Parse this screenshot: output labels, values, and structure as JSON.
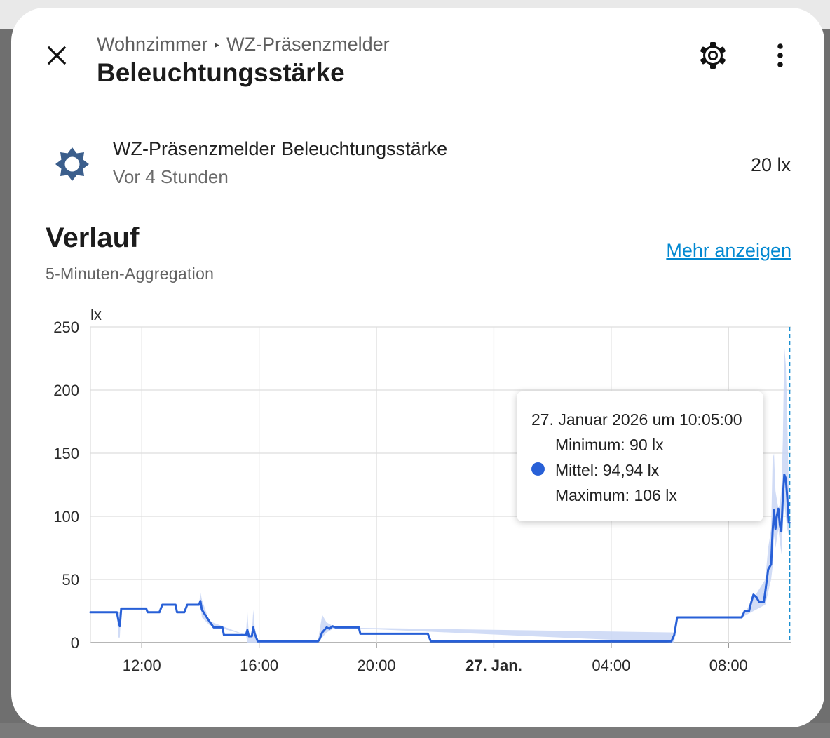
{
  "header": {
    "breadcrumb_area": "Wohnzimmer",
    "breadcrumb_separator": "▸",
    "breadcrumb_device": "WZ-Präsenzmelder",
    "title": "Beleuchtungsstärke",
    "icons": {
      "close": "close-icon",
      "settings": "gear-icon",
      "more": "more-vertical-icon"
    }
  },
  "entity": {
    "icon": "brightness-icon",
    "name": "WZ-Präsenzmelder Beleuchtungsstärke",
    "last_changed": "Vor 4 Stunden",
    "state": "20 lx"
  },
  "history": {
    "title": "Verlauf",
    "subtitle": "5-Minuten-Aggregation",
    "more_link": "Mehr anzeigen"
  },
  "tooltip": {
    "date": "27. Januar 2026 um 10:05:00",
    "min": "Minimum: 90 lx",
    "mean": "Mittel: 94,94 lx",
    "max": "Maximum: 106 lx"
  },
  "colors": {
    "line": "#2860d7",
    "band": "#c9d6f4",
    "link": "#0288d1",
    "icon": "#3b5e8c",
    "cursor": "#1a8fd0"
  },
  "chart_data": {
    "type": "line",
    "ylabel": "lx",
    "ylim": [
      0,
      250
    ],
    "yticks": [
      0,
      50,
      100,
      150,
      200,
      250
    ],
    "x_unit": "hours since 26. Jan. 00:00",
    "xlim": [
      10.25,
      34.12
    ],
    "xticks": [
      {
        "value": 12,
        "label": "12:00",
        "bold": false
      },
      {
        "value": 16,
        "label": "16:00",
        "bold": false
      },
      {
        "value": 20,
        "label": "20:00",
        "bold": false
      },
      {
        "value": 24,
        "label": "27. Jan.",
        "bold": true
      },
      {
        "value": 28,
        "label": "04:00",
        "bold": false
      },
      {
        "value": 32,
        "label": "08:00",
        "bold": false
      }
    ],
    "cursor_x": 34.08,
    "series": [
      {
        "name": "Mittel",
        "points": [
          [
            10.25,
            24
          ],
          [
            11.15,
            24
          ],
          [
            11.2,
            18
          ],
          [
            11.25,
            13
          ],
          [
            11.3,
            27
          ],
          [
            12.15,
            27
          ],
          [
            12.2,
            24
          ],
          [
            12.6,
            24
          ],
          [
            12.7,
            30
          ],
          [
            13.15,
            30
          ],
          [
            13.2,
            24
          ],
          [
            13.45,
            24
          ],
          [
            13.55,
            30
          ],
          [
            13.95,
            30
          ],
          [
            14.0,
            33
          ],
          [
            14.05,
            26
          ],
          [
            14.3,
            17
          ],
          [
            14.45,
            12
          ],
          [
            14.75,
            12
          ],
          [
            14.8,
            6
          ],
          [
            15.55,
            6
          ],
          [
            15.6,
            10
          ],
          [
            15.65,
            5
          ],
          [
            15.75,
            5
          ],
          [
            15.8,
            12
          ],
          [
            15.85,
            7
          ],
          [
            15.95,
            1
          ],
          [
            18.0,
            1
          ],
          [
            18.05,
            2
          ],
          [
            18.15,
            8
          ],
          [
            18.3,
            12
          ],
          [
            18.4,
            11
          ],
          [
            18.5,
            13
          ],
          [
            18.6,
            12
          ],
          [
            19.4,
            12
          ],
          [
            19.45,
            7
          ],
          [
            21.75,
            7
          ],
          [
            21.85,
            1
          ],
          [
            30.05,
            1
          ],
          [
            30.15,
            6
          ],
          [
            30.25,
            20
          ],
          [
            32.45,
            20
          ],
          [
            32.55,
            25
          ],
          [
            32.7,
            25
          ],
          [
            32.75,
            30
          ],
          [
            32.85,
            38
          ],
          [
            32.95,
            36
          ],
          [
            33.05,
            32
          ],
          [
            33.2,
            32
          ],
          [
            33.25,
            40
          ],
          [
            33.35,
            58
          ],
          [
            33.45,
            62
          ],
          [
            33.5,
            88
          ],
          [
            33.55,
            105
          ],
          [
            33.6,
            90
          ],
          [
            33.65,
            101
          ],
          [
            33.7,
            106
          ],
          [
            33.75,
            93
          ],
          [
            33.8,
            88
          ],
          [
            33.85,
            115
          ],
          [
            33.9,
            133
          ],
          [
            33.95,
            130
          ],
          [
            34.0,
            115
          ],
          [
            34.05,
            95
          ],
          [
            34.08,
            94.94
          ]
        ],
        "band_points": [
          [
            10.25,
            24,
            24
          ],
          [
            11.15,
            24,
            24
          ],
          [
            11.2,
            4,
            24
          ],
          [
            11.25,
            4,
            24
          ],
          [
            11.3,
            27,
            27
          ],
          [
            13.95,
            30,
            30
          ],
          [
            14.0,
            30,
            40
          ],
          [
            14.05,
            20,
            34
          ],
          [
            14.3,
            14,
            17
          ],
          [
            15.55,
            6,
            6
          ],
          [
            15.6,
            0,
            25
          ],
          [
            15.65,
            0,
            6
          ],
          [
            15.75,
            0,
            6
          ],
          [
            15.8,
            0,
            26
          ],
          [
            15.85,
            0,
            12
          ],
          [
            15.95,
            0,
            1
          ],
          [
            18.0,
            0,
            1
          ],
          [
            18.15,
            4,
            22
          ],
          [
            18.3,
            8,
            16
          ],
          [
            18.6,
            12,
            12
          ],
          [
            30.15,
            0,
            8
          ],
          [
            30.25,
            20,
            20
          ],
          [
            32.45,
            20,
            20
          ],
          [
            33.25,
            30,
            50
          ],
          [
            33.35,
            40,
            75
          ],
          [
            33.45,
            50,
            90
          ],
          [
            33.5,
            60,
            145
          ],
          [
            33.55,
            85,
            150
          ],
          [
            33.6,
            75,
            120
          ],
          [
            33.7,
            90,
            106
          ],
          [
            33.75,
            80,
            110
          ],
          [
            33.8,
            70,
            120
          ],
          [
            33.85,
            95,
            160
          ],
          [
            33.9,
            110,
            235
          ],
          [
            33.95,
            100,
            220
          ],
          [
            34.0,
            90,
            180
          ],
          [
            34.05,
            85,
            120
          ],
          [
            34.08,
            90,
            106
          ]
        ]
      }
    ]
  }
}
